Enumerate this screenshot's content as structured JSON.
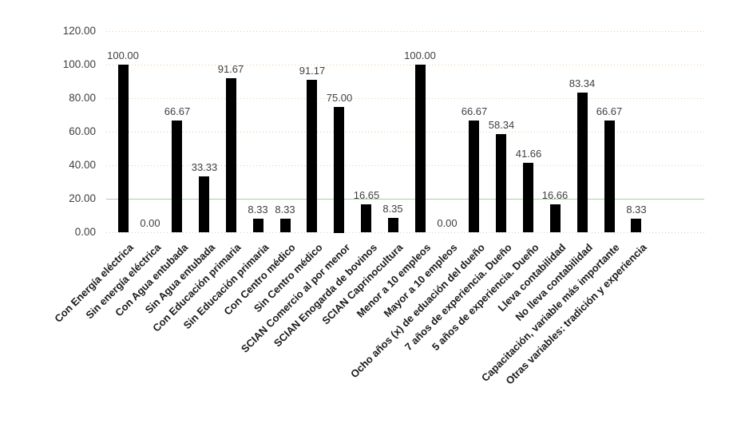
{
  "chart_data": {
    "type": "bar",
    "title": "",
    "xlabel": "",
    "ylabel": "",
    "legend": "none",
    "grid": "horizontal, dotted peach lines; the 20.00 gridline is a solid light-green line",
    "ylim": [
      0,
      120
    ],
    "yticks": [
      0,
      20,
      40,
      60,
      80,
      100,
      120
    ],
    "ytick_labels": [
      "0.00",
      "20.00",
      "40.00",
      "60.00",
      "80.00",
      "100.00",
      "120.00"
    ],
    "categories": [
      "Con Energía eléctrica",
      "Sin energía eléctrica",
      "Con Agua entubada",
      "Sin Agua entubada",
      "Con Educación primaria",
      "Sin Educación primaria",
      "Con Centro médico",
      "Sin Centro médico",
      "SCIAN Comercio al por menor",
      "SCIAN Enogarda de bovinos",
      "SCIAN Caprinocultura",
      "Menor a 10 empleos",
      "Mayor a 10 empleos",
      "Ocho años (x) de eduación del dueño",
      "7 años de experiencia. Dueño",
      "5 años de experiencia. Dueño",
      "Lleva contabilidad",
      "No lleva contabilidad",
      "Capacitación, variable más importante",
      "Otras variables: tradición y experiencia"
    ],
    "values": [
      100.0,
      0.0,
      66.67,
      33.33,
      91.67,
      8.33,
      8.33,
      91.17,
      75.0,
      16.65,
      8.35,
      100.0,
      0.0,
      66.67,
      58.34,
      41.66,
      16.66,
      83.34,
      66.67,
      8.33
    ],
    "data_labels": [
      "100.00",
      "0.00",
      "66.67",
      "33.33",
      "91.67",
      "8.33",
      "8.33",
      "91.17",
      "75.00",
      "16.65",
      "8.35",
      "100.00",
      "0.00",
      "66.67",
      "58.34",
      "41.66",
      "16.66",
      "83.34",
      "66.67",
      "8.33"
    ],
    "colors": {
      "bar": "#000000",
      "gridline_dotted": "#f6c897",
      "gridline_solid": "#a5d2a5",
      "axis_text": "#3f3f3f",
      "data_label_text": "#3f3f3f",
      "category_text": "#1a1a1a",
      "background": "#ffffff"
    }
  }
}
